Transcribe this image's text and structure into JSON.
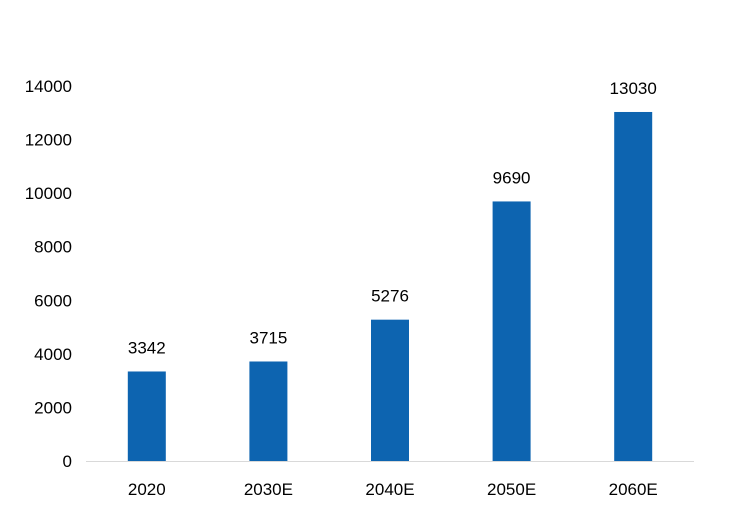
{
  "chart_data": {
    "type": "bar",
    "title": "",
    "xlabel": "",
    "ylabel": "",
    "categories": [
      "2020",
      "2030E",
      "2040E",
      "2050E",
      "2060E"
    ],
    "values": [
      3342,
      3715,
      5276,
      9690,
      13030
    ],
    "data_labels": [
      "3342",
      "3715",
      "5276",
      "9690",
      "13030"
    ],
    "ylim": [
      0,
      14000
    ],
    "yticks": [
      0,
      2000,
      4000,
      6000,
      8000,
      10000,
      12000,
      14000
    ],
    "ytick_labels": [
      "0",
      "2000",
      "4000",
      "6000",
      "8000",
      "10000",
      "12000",
      "14000"
    ],
    "grid": false,
    "legend": "none",
    "bar_color": "#0d64b0",
    "axis_color": "#d9d9d9"
  }
}
